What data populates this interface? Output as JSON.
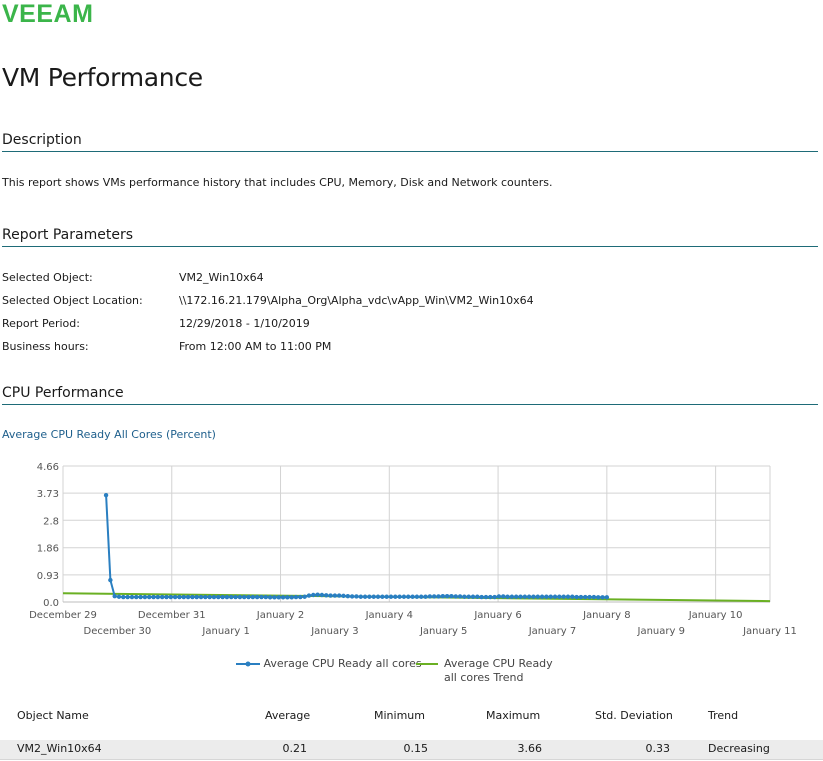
{
  "brand": {
    "logo_text": "veeam",
    "color": "#3bb54a"
  },
  "page": {
    "title": "VM Performance"
  },
  "description": {
    "heading": "Description",
    "text": "This report shows VMs performance history that includes CPU, Memory, Disk and Network counters."
  },
  "parameters": {
    "heading": "Report Parameters",
    "items": [
      {
        "label": "Selected Object:",
        "value": "VM2_Win10x64"
      },
      {
        "label": "Selected Object Location:",
        "value": "\\\\172.16.21.179\\Alpha_Org\\Alpha_vdc\\vApp_Win\\VM2_Win10x64"
      },
      {
        "label": "Report Period:",
        "value": "12/29/2018 - 1/10/2019"
      },
      {
        "label": "Business hours:",
        "value": "From 12:00 AM to 11:00 PM"
      }
    ]
  },
  "cpu": {
    "heading": "CPU Performance",
    "chart_title": "Average CPU Ready All Cores (Percent)"
  },
  "chart_data": {
    "type": "line",
    "title": "Average CPU Ready All Cores (Percent)",
    "y_ticks": [
      "4.66",
      "3.73",
      "2.8",
      "1.86",
      "0.93",
      "0.0"
    ],
    "ylim": [
      0,
      4.66
    ],
    "x_ticks_row1": [
      "December 29",
      "December 31",
      "January 2",
      "January 4",
      "January 6",
      "January 8",
      "January 10"
    ],
    "x_ticks_row2": [
      "December 30",
      "January 1",
      "January 3",
      "January 5",
      "January 7",
      "January 9",
      "January 11"
    ],
    "grid": true,
    "legend_position": "bottom",
    "series": [
      {
        "name": "Average CPU Ready all cores",
        "color": "#2a7fc1",
        "x_range": [
          "2018-12-29 19:00",
          "2019-01-08 00:00"
        ],
        "values": [
          3.66,
          0.75,
          0.2,
          0.18,
          0.17,
          0.17,
          0.17,
          0.17,
          0.17,
          0.17,
          0.17,
          0.17,
          0.17,
          0.17,
          0.17,
          0.17,
          0.17,
          0.17,
          0.17,
          0.17,
          0.17,
          0.17,
          0.17,
          0.17,
          0.17,
          0.17,
          0.17,
          0.17,
          0.17,
          0.17,
          0.17,
          0.17,
          0.17,
          0.17,
          0.17,
          0.17,
          0.17,
          0.17,
          0.16,
          0.16,
          0.16,
          0.16,
          0.16,
          0.16,
          0.17,
          0.17,
          0.18,
          0.22,
          0.24,
          0.25,
          0.24,
          0.23,
          0.22,
          0.22,
          0.22,
          0.21,
          0.2,
          0.19,
          0.19,
          0.18,
          0.18,
          0.18,
          0.18,
          0.18,
          0.18,
          0.18,
          0.18,
          0.18,
          0.18,
          0.18,
          0.18,
          0.18,
          0.18,
          0.18,
          0.18,
          0.19,
          0.19,
          0.19,
          0.2,
          0.2,
          0.2,
          0.19,
          0.19,
          0.18,
          0.18,
          0.18,
          0.18,
          0.17,
          0.17,
          0.17,
          0.17,
          0.19,
          0.19,
          0.18,
          0.18,
          0.18,
          0.18,
          0.18,
          0.18,
          0.18,
          0.18,
          0.18,
          0.18,
          0.18,
          0.18,
          0.18,
          0.18,
          0.18,
          0.18,
          0.17,
          0.17,
          0.17,
          0.17,
          0.17,
          0.16,
          0.16,
          0.16
        ]
      },
      {
        "name": "Average CPU Ready all cores Trend",
        "color": "#6ab023",
        "x": [
          "2018-12-29",
          "2019-01-11"
        ],
        "values": [
          0.3,
          0.03
        ]
      }
    ]
  },
  "table": {
    "columns": [
      "Object Name",
      "Average",
      "Minimum",
      "Maximum",
      "Std. Deviation",
      "Trend"
    ],
    "rows": [
      {
        "name": "VM2_Win10x64",
        "average": "0.21",
        "minimum": "0.15",
        "maximum": "3.66",
        "std_dev": "0.33",
        "trend": "Decreasing"
      }
    ]
  }
}
